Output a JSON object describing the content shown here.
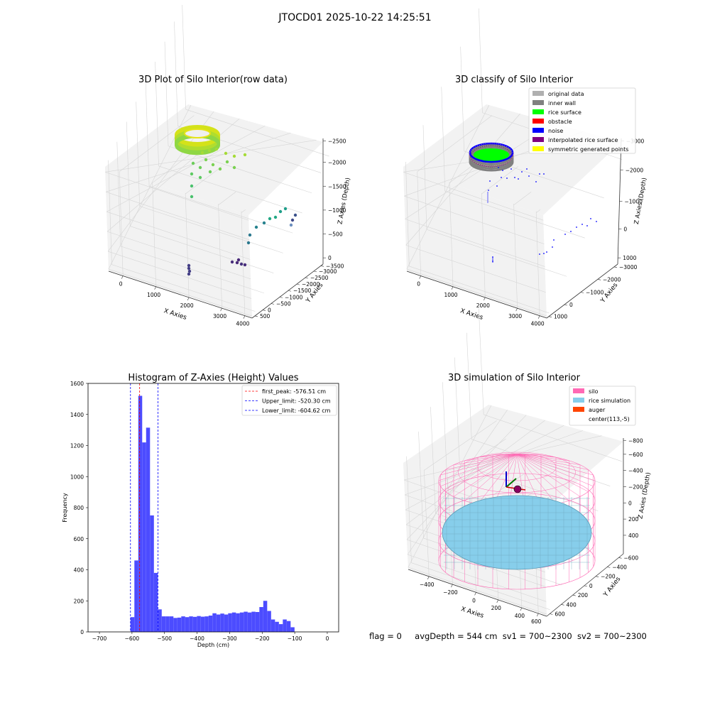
{
  "figure_title": "JTOCD01 2025-10-22 14:25:51",
  "status_line": {
    "flag": "flag = 0",
    "avg_depth": "avgDepth = 544 cm",
    "sv1": "sv1 = 700~2300",
    "sv2": "sv2 = 700~2300"
  },
  "colors": {
    "hist_bar": "#4c4cff",
    "first_peak_line": "#ff0000",
    "limit_lines": "#0000ff",
    "original_data": "#b0b0b0",
    "inner_wall": "#808080",
    "rice_surface": "#00ff00",
    "obstacle": "#ff0000",
    "noise": "#0000ff",
    "interpolated_rice_surface": "#800080",
    "symmetric_generated_points": "#ffff00",
    "silo": "#ff69b4",
    "rice_simulation": "#87ceeb",
    "auger": "#ff4500"
  },
  "chart_data": [
    {
      "type": "scatter",
      "title": "3D Plot of Silo Interior(row data)",
      "xlabel": "X Axies",
      "ylabel": "Y Axies",
      "zlabel": "Z Axies (Depth)",
      "x_ticks": [
        "0",
        "1000",
        "2000",
        "3000",
        "4000"
      ],
      "y_ticks": [
        "500",
        "0",
        "−500",
        "−1000",
        "−1500",
        "−2000",
        "−2500",
        "−3000",
        "−3500"
      ],
      "z_ticks": [
        "0",
        "−500",
        "−1000",
        "−1500",
        "−2000",
        "−2500"
      ]
    },
    {
      "type": "scatter",
      "title": "3D classify of Silo Interior",
      "xlabel": "X Axies",
      "ylabel": "Y Axies",
      "zlabel": "Z Axies (Depth)",
      "x_ticks": [
        "0",
        "1000",
        "2000",
        "3000",
        "4000"
      ],
      "y_ticks": [
        "1000",
        "0",
        "−1000",
        "−2000",
        "−3000"
      ],
      "z_ticks": [
        "1000",
        "0",
        "−1000",
        "−2000",
        "−3000"
      ],
      "legend": [
        "original data",
        "inner wall",
        "rice surface",
        "obstacle",
        "noise",
        "interpolated rice surface",
        "symmetric generated points"
      ],
      "legend_colors": [
        "#b0b0b0",
        "#808080",
        "#00ff00",
        "#ff0000",
        "#0000ff",
        "#800080",
        "#ffff00"
      ],
      "legend_position": "top-right"
    },
    {
      "type": "bar",
      "title": "Histogram of Z-Axies (Height) Values",
      "xlabel": "Depth (cm)",
      "ylabel": "Frequency",
      "xlim": [
        -735,
        35
      ],
      "ylim": [
        0,
        1600
      ],
      "x_ticks": [
        -700,
        -600,
        -500,
        -400,
        -300,
        -200,
        -100,
        0
      ],
      "y_ticks": [
        0,
        200,
        400,
        600,
        800,
        1000,
        1200,
        1400,
        1600
      ],
      "bin_start": -604.62,
      "bin_width": 12.0,
      "values": [
        95,
        460,
        1520,
        1220,
        1315,
        750,
        380,
        145,
        100,
        100,
        100,
        90,
        92,
        100,
        95,
        100,
        97,
        102,
        98,
        100,
        105,
        120,
        112,
        118,
        112,
        120,
        125,
        120,
        125,
        130,
        125,
        130,
        128,
        160,
        200,
        135,
        80,
        65,
        50,
        80,
        70,
        30
      ],
      "lines": [
        {
          "label": "first_peak: -576.51 cm",
          "x": -576.51,
          "style": "dashed"
        },
        {
          "label": "Upper_limit: -520.30 cm",
          "x": -520.3,
          "style": "dashed"
        },
        {
          "label": "Lower_limit: -604.62 cm",
          "x": -604.62,
          "style": "dashed"
        }
      ],
      "legend_position": "top-right"
    },
    {
      "type": "scatter",
      "title": "3D simulation of Silo Interior",
      "xlabel": "X Axies",
      "ylabel": "Y Axies",
      "zlabel": "Z Axies (Depth)",
      "x_ticks": [
        "−400",
        "−200",
        "0",
        "200",
        "400",
        "600"
      ],
      "y_ticks": [
        "600",
        "400",
        "200",
        "0",
        "−200",
        "−400",
        "−600"
      ],
      "z_ticks": [
        "400",
        "200",
        "0",
        "−200",
        "−400",
        "−600",
        "−800"
      ],
      "legend": [
        "silo",
        "rice simulation",
        "auger",
        "center(113,-5)"
      ],
      "legend_colors": [
        "#ff69b4",
        "#87ceeb",
        "#ff4500",
        "#ffffff"
      ],
      "legend_position": "top-right"
    }
  ]
}
